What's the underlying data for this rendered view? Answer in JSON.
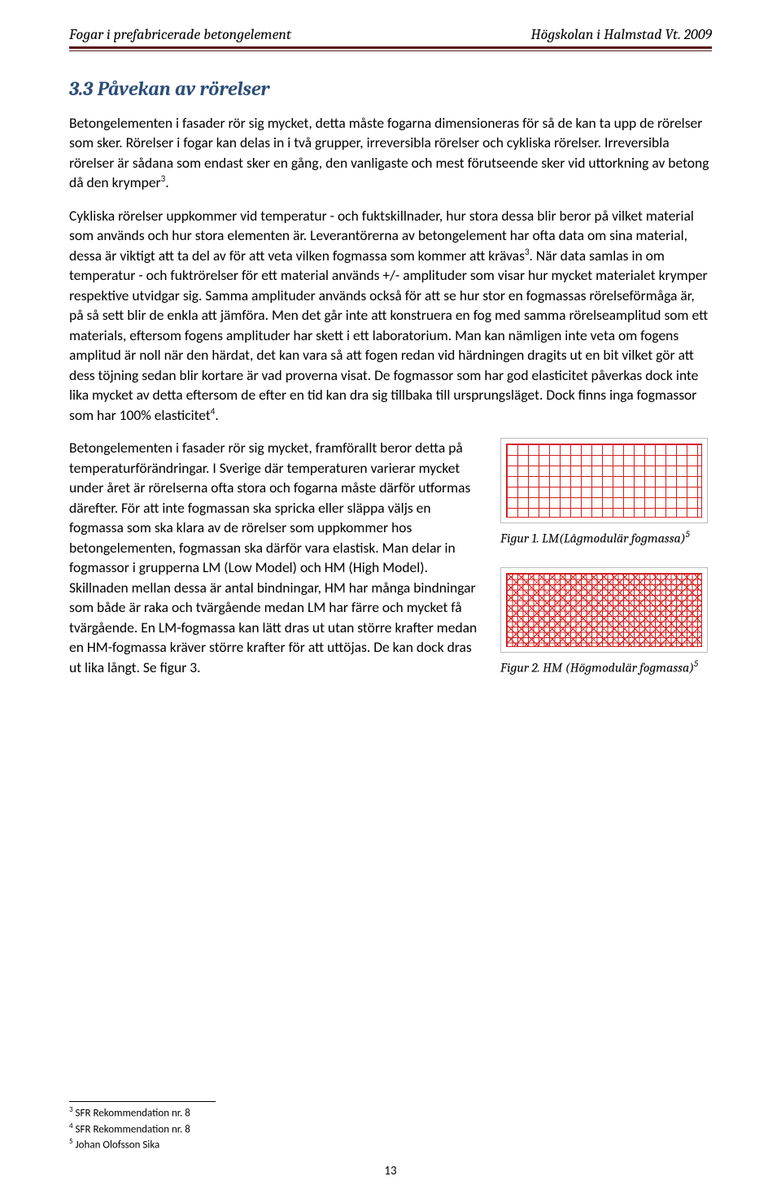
{
  "header": {
    "left": "Fogar i prefabricerade betongelement",
    "right": "Högskolan i Halmstad Vt. 2009"
  },
  "section": {
    "title": "3.3 Påvekan av rörelser",
    "para1": "Betongelementen i fasader rör sig mycket, detta måste fogarna dimensioneras för så de kan ta upp de rörelser som sker. Rörelser i fogar kan delas in i två grupper, irreversibla rörelser och cykliska rörelser. Irreversibla rörelser är sådana som endast sker en gång, den vanligaste och mest förutseende sker vid uttorkning av betong då den krymper",
    "para1_super": "3",
    "para1_end": ".",
    "para2a": "Cykliska rörelser uppkommer vid temperatur - och fuktskillnader, hur stora dessa blir beror på vilket material som används och hur stora elementen är. Leverantörerna av betongelement har ofta data om sina material, dessa är viktigt att ta del av för att veta vilken fogmassa som kommer att krävas",
    "para2a_super": "3",
    "para2b": ". När data samlas in om temperatur - och fuktrörelser för ett material används +/- amplituder som visar hur mycket materialet krymper respektive utvidgar sig. Samma amplituder används också för att se hur stor en fogmassas rörelseförmåga är, på så sett blir de enkla att jämföra. Men det går inte att konstruera en fog med samma rörelseamplitud som ett materials, eftersom fogens amplituder har skett i ett laboratorium. Man kan nämligen inte veta om fogens amplitud är noll när den härdat, det kan vara så att fogen redan vid härdningen dragits ut en bit vilket gör att dess töjning sedan blir kortare är vad proverna visat. De fogmassor som har god elasticitet påverkas dock inte lika mycket av detta eftersom de efter en tid kan dra sig tillbaka till ursprungsläget. Dock finns inga fogmassor som har 100% elasticitet",
    "para2b_super": "4",
    "para2c": ".",
    "para3": "Betongelementen i fasader rör sig mycket, framförallt beror detta på temperaturförändringar. I Sverige där temperaturen varierar mycket under året är rörelserna ofta stora och fogarna måste därför utformas därefter. För att inte fogmassan ska spricka eller släppa väljs en fogmassa som ska klara av de  rörelser som uppkommer hos betongelementen, fogmassan ska därför vara elastisk. Man delar in fogmassor i grupperna LM (Low Model) och HM (High Model). Skillnaden mellan dessa är antal bindningar, HM har många bindningar som både är raka och tvärgående medan LM har färre och mycket få tvärgående. En LM-fogmassa kan lätt dras ut utan större krafter medan en HM-fogmassa kräver större krafter för att uttöjas. De kan dock dras ut lika långt. Se figur 3."
  },
  "figures": {
    "fig1_caption_a": "Figur 1. LM(Lågmodulär fogmassa)",
    "fig1_super": "5",
    "fig2_caption_a": "Figur 2. HM (Högmodulär fogmassa)",
    "fig2_super": "5"
  },
  "footnotes": {
    "f3": "SFR Rekommendation nr. 8",
    "f4": "SFR Rekommendation nr. 8",
    "f5": "Johan Olofsson Sika"
  },
  "pagenum": "13"
}
